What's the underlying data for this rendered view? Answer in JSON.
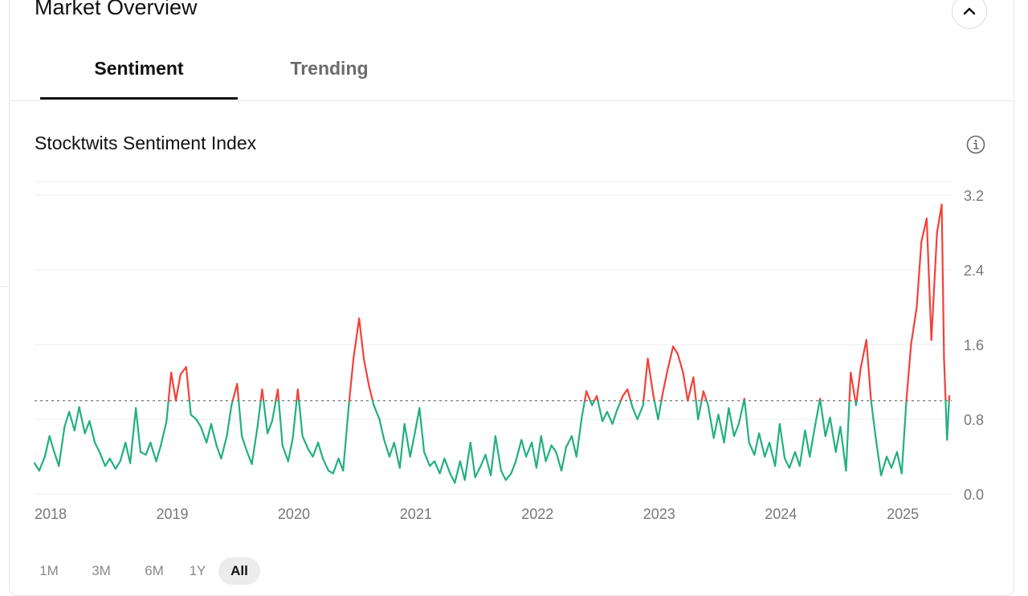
{
  "panel": {
    "title": "Market Overview"
  },
  "tabs": [
    {
      "label": "Sentiment",
      "active": true
    },
    {
      "label": "Trending",
      "active": false
    }
  ],
  "chart_title": "Stocktwits Sentiment Index",
  "icons": {
    "collapse": "chevron-up-icon",
    "info": "info-icon"
  },
  "colors": {
    "above_threshold": "#f2413b",
    "below_threshold": "#22b07d",
    "threshold_line": "#888888",
    "grid": "#eeeeee"
  },
  "time_ranges": [
    {
      "label": "1M"
    },
    {
      "label": "3M"
    },
    {
      "label": "6M"
    },
    {
      "label": "1Y"
    },
    {
      "label": "All",
      "active": true
    }
  ],
  "chart_data": {
    "type": "line",
    "title": "Stocktwits Sentiment Index",
    "xlabel": "",
    "ylabel": "",
    "x_ticks": [
      "2018",
      "2019",
      "2020",
      "2021",
      "2022",
      "2023",
      "2024",
      "2025"
    ],
    "y_ticks": [
      "0.0",
      "0.8",
      "1.6",
      "2.4",
      "3.2"
    ],
    "xlim": [
      "2018-01-01",
      "2025-07-15"
    ],
    "ylim": [
      0,
      3.2
    ],
    "threshold": 1.0,
    "grid": true,
    "series": [
      {
        "points": [
          [
            "2018-01-01",
            0.33
          ],
          [
            "2018-01-15",
            0.25
          ],
          [
            "2018-02-01",
            0.4
          ],
          [
            "2018-02-15",
            0.62
          ],
          [
            "2018-03-01",
            0.45
          ],
          [
            "2018-03-15",
            0.3
          ],
          [
            "2018-04-01",
            0.72
          ],
          [
            "2018-04-15",
            0.88
          ],
          [
            "2018-05-01",
            0.68
          ],
          [
            "2018-05-15",
            0.93
          ],
          [
            "2018-06-01",
            0.65
          ],
          [
            "2018-06-15",
            0.78
          ],
          [
            "2018-07-01",
            0.55
          ],
          [
            "2018-07-15",
            0.45
          ],
          [
            "2018-08-01",
            0.3
          ],
          [
            "2018-08-15",
            0.38
          ],
          [
            "2018-09-01",
            0.27
          ],
          [
            "2018-09-15",
            0.35
          ],
          [
            "2018-10-01",
            0.55
          ],
          [
            "2018-10-15",
            0.33
          ],
          [
            "2018-11-01",
            0.92
          ],
          [
            "2018-11-15",
            0.45
          ],
          [
            "2018-12-01",
            0.42
          ],
          [
            "2018-12-15",
            0.55
          ],
          [
            "2019-01-01",
            0.35
          ],
          [
            "2019-01-15",
            0.52
          ],
          [
            "2019-02-01",
            0.78
          ],
          [
            "2019-02-15",
            1.3
          ],
          [
            "2019-03-01",
            1.0
          ],
          [
            "2019-03-15",
            1.28
          ],
          [
            "2019-04-01",
            1.36
          ],
          [
            "2019-04-15",
            0.85
          ],
          [
            "2019-05-01",
            0.8
          ],
          [
            "2019-05-15",
            0.72
          ],
          [
            "2019-06-01",
            0.55
          ],
          [
            "2019-06-15",
            0.75
          ],
          [
            "2019-07-01",
            0.52
          ],
          [
            "2019-07-15",
            0.38
          ],
          [
            "2019-08-01",
            0.62
          ],
          [
            "2019-08-15",
            0.95
          ],
          [
            "2019-09-01",
            1.18
          ],
          [
            "2019-09-15",
            0.62
          ],
          [
            "2019-10-01",
            0.45
          ],
          [
            "2019-10-15",
            0.32
          ],
          [
            "2019-11-01",
            0.72
          ],
          [
            "2019-11-15",
            1.12
          ],
          [
            "2019-12-01",
            0.65
          ],
          [
            "2019-12-15",
            0.78
          ],
          [
            "2020-01-01",
            1.12
          ],
          [
            "2020-01-15",
            0.52
          ],
          [
            "2020-02-01",
            0.35
          ],
          [
            "2020-02-15",
            0.6
          ],
          [
            "2020-03-01",
            1.12
          ],
          [
            "2020-03-15",
            0.62
          ],
          [
            "2020-04-01",
            0.48
          ],
          [
            "2020-04-15",
            0.4
          ],
          [
            "2020-05-01",
            0.55
          ],
          [
            "2020-05-15",
            0.38
          ],
          [
            "2020-06-01",
            0.25
          ],
          [
            "2020-06-15",
            0.22
          ],
          [
            "2020-07-01",
            0.38
          ],
          [
            "2020-07-15",
            0.25
          ],
          [
            "2020-08-01",
            0.95
          ],
          [
            "2020-08-15",
            1.45
          ],
          [
            "2020-09-01",
            1.88
          ],
          [
            "2020-09-15",
            1.45
          ],
          [
            "2020-10-01",
            1.15
          ],
          [
            "2020-10-15",
            0.95
          ],
          [
            "2020-11-01",
            0.8
          ],
          [
            "2020-11-15",
            0.58
          ],
          [
            "2020-12-01",
            0.4
          ],
          [
            "2020-12-15",
            0.55
          ],
          [
            "2021-01-01",
            0.28
          ],
          [
            "2021-01-15",
            0.75
          ],
          [
            "2021-02-01",
            0.4
          ],
          [
            "2021-02-15",
            0.65
          ],
          [
            "2021-03-01",
            0.92
          ],
          [
            "2021-03-15",
            0.45
          ],
          [
            "2021-04-01",
            0.3
          ],
          [
            "2021-04-15",
            0.35
          ],
          [
            "2021-05-01",
            0.22
          ],
          [
            "2021-05-15",
            0.38
          ],
          [
            "2021-06-01",
            0.22
          ],
          [
            "2021-06-15",
            0.12
          ],
          [
            "2021-07-01",
            0.35
          ],
          [
            "2021-07-15",
            0.15
          ],
          [
            "2021-08-01",
            0.55
          ],
          [
            "2021-08-15",
            0.18
          ],
          [
            "2021-09-01",
            0.3
          ],
          [
            "2021-09-15",
            0.42
          ],
          [
            "2021-10-01",
            0.2
          ],
          [
            "2021-10-15",
            0.62
          ],
          [
            "2021-11-01",
            0.25
          ],
          [
            "2021-11-15",
            0.15
          ],
          [
            "2021-12-01",
            0.22
          ],
          [
            "2021-12-15",
            0.35
          ],
          [
            "2022-01-01",
            0.58
          ],
          [
            "2022-01-15",
            0.4
          ],
          [
            "2022-02-01",
            0.55
          ],
          [
            "2022-02-15",
            0.28
          ],
          [
            "2022-03-01",
            0.62
          ],
          [
            "2022-03-15",
            0.35
          ],
          [
            "2022-04-01",
            0.52
          ],
          [
            "2022-04-15",
            0.45
          ],
          [
            "2022-05-01",
            0.25
          ],
          [
            "2022-05-15",
            0.5
          ],
          [
            "2022-06-01",
            0.62
          ],
          [
            "2022-06-15",
            0.4
          ],
          [
            "2022-07-01",
            0.82
          ],
          [
            "2022-07-15",
            1.1
          ],
          [
            "2022-08-01",
            0.95
          ],
          [
            "2022-08-15",
            1.05
          ],
          [
            "2022-09-01",
            0.78
          ],
          [
            "2022-09-15",
            0.88
          ],
          [
            "2022-10-01",
            0.75
          ],
          [
            "2022-10-15",
            0.9
          ],
          [
            "2022-11-01",
            1.05
          ],
          [
            "2022-11-15",
            1.12
          ],
          [
            "2022-12-01",
            0.92
          ],
          [
            "2022-12-15",
            0.8
          ],
          [
            "2023-01-01",
            0.95
          ],
          [
            "2023-01-15",
            1.45
          ],
          [
            "2023-02-01",
            1.05
          ],
          [
            "2023-02-15",
            0.8
          ],
          [
            "2023-03-01",
            1.08
          ],
          [
            "2023-03-15",
            1.32
          ],
          [
            "2023-04-01",
            1.58
          ],
          [
            "2023-04-15",
            1.5
          ],
          [
            "2023-05-01",
            1.3
          ],
          [
            "2023-05-15",
            1.0
          ],
          [
            "2023-06-01",
            1.25
          ],
          [
            "2023-06-15",
            0.8
          ],
          [
            "2023-07-01",
            1.1
          ],
          [
            "2023-07-15",
            0.95
          ],
          [
            "2023-08-01",
            0.6
          ],
          [
            "2023-08-15",
            0.85
          ],
          [
            "2023-09-01",
            0.55
          ],
          [
            "2023-09-15",
            0.92
          ],
          [
            "2023-10-01",
            0.62
          ],
          [
            "2023-10-15",
            0.75
          ],
          [
            "2023-11-01",
            1.02
          ],
          [
            "2023-11-15",
            0.55
          ],
          [
            "2023-12-01",
            0.42
          ],
          [
            "2023-12-15",
            0.65
          ],
          [
            "2024-01-01",
            0.4
          ],
          [
            "2024-01-15",
            0.55
          ],
          [
            "2024-02-01",
            0.3
          ],
          [
            "2024-02-15",
            0.75
          ],
          [
            "2024-03-01",
            0.38
          ],
          [
            "2024-03-15",
            0.28
          ],
          [
            "2024-04-01",
            0.45
          ],
          [
            "2024-04-15",
            0.3
          ],
          [
            "2024-05-01",
            0.68
          ],
          [
            "2024-05-15",
            0.4
          ],
          [
            "2024-06-01",
            0.75
          ],
          [
            "2024-06-15",
            1.02
          ],
          [
            "2024-07-01",
            0.62
          ],
          [
            "2024-07-15",
            0.82
          ],
          [
            "2024-08-01",
            0.45
          ],
          [
            "2024-08-15",
            0.72
          ],
          [
            "2024-09-01",
            0.25
          ],
          [
            "2024-09-15",
            1.3
          ],
          [
            "2024-10-01",
            0.95
          ],
          [
            "2024-10-15",
            1.35
          ],
          [
            "2024-11-01",
            1.65
          ],
          [
            "2024-11-15",
            1.0
          ],
          [
            "2024-12-01",
            0.55
          ],
          [
            "2024-12-15",
            0.2
          ],
          [
            "2025-01-01",
            0.4
          ],
          [
            "2025-01-15",
            0.28
          ],
          [
            "2025-02-01",
            0.45
          ],
          [
            "2025-02-15",
            0.22
          ],
          [
            "2025-03-01",
            1.0
          ],
          [
            "2025-03-15",
            1.6
          ],
          [
            "2025-04-01",
            2.0
          ],
          [
            "2025-04-15",
            2.7
          ],
          [
            "2025-05-01",
            2.95
          ],
          [
            "2025-05-15",
            1.65
          ],
          [
            "2025-06-01",
            2.8
          ],
          [
            "2025-06-15",
            3.1
          ],
          [
            "2025-06-22",
            1.45
          ],
          [
            "2025-07-01",
            0.58
          ],
          [
            "2025-07-08",
            1.05
          ]
        ]
      }
    ]
  }
}
